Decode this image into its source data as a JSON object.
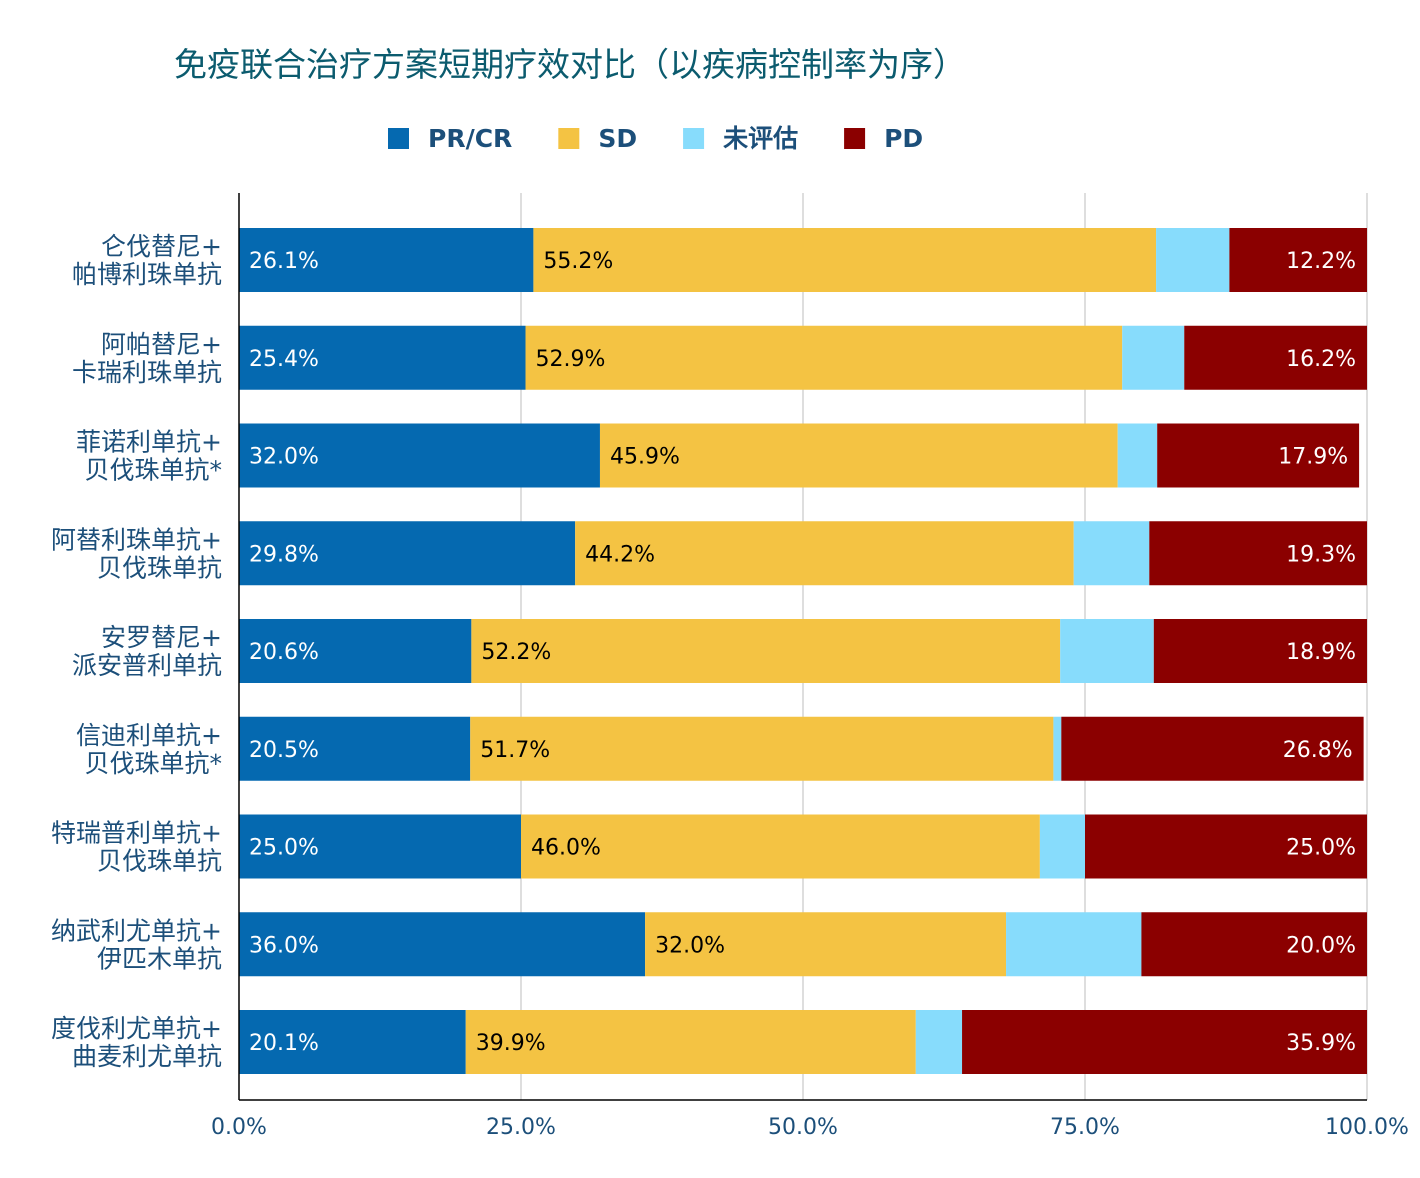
{
  "chart_data": {
    "type": "bar",
    "orientation": "horizontal",
    "stacked": true,
    "title": "免疫联合治疗方案短期疗效对比（以疾病控制率为序）",
    "xlabel": "",
    "ylabel": "",
    "xlim": [
      0,
      100
    ],
    "x_ticks": [
      "0.0%",
      "25.0%",
      "50.0%",
      "75.0%",
      "100.0%"
    ],
    "grid": "vertical",
    "legend_position": "top",
    "categories": [
      [
        "仑伐替尼+",
        "帕博利珠单抗"
      ],
      [
        "阿帕替尼+",
        "卡瑞利珠单抗"
      ],
      [
        "菲诺利单抗+",
        "贝伐珠单抗*"
      ],
      [
        "阿替利珠单抗+",
        "贝伐珠单抗"
      ],
      [
        "安罗替尼+",
        "派安普利单抗"
      ],
      [
        "信迪利单抗+",
        "贝伐珠单抗*"
      ],
      [
        "特瑞普利单抗+",
        "贝伐珠单抗"
      ],
      [
        "纳武利尤单抗+",
        "伊匹木单抗"
      ],
      [
        "度伐利尤单抗+",
        "曲麦利尤单抗"
      ]
    ],
    "series": [
      {
        "name": "PR/CR",
        "color": "#0569b0",
        "label_color": "#ffffff",
        "label_align": "left",
        "values": [
          26.1,
          25.4,
          32.0,
          29.8,
          20.6,
          20.5,
          25.0,
          36.0,
          20.1
        ],
        "labels": [
          "26.1%",
          "25.4%",
          "32.0%",
          "29.8%",
          "20.6%",
          "20.5%",
          "25.0%",
          "36.0%",
          "20.1%"
        ]
      },
      {
        "name": "SD",
        "color": "#f4c343",
        "label_color": "#000000",
        "label_align": "left",
        "values": [
          55.2,
          52.9,
          45.9,
          44.2,
          52.2,
          51.7,
          46.0,
          32.0,
          39.9
        ],
        "labels": [
          "55.2%",
          "52.9%",
          "45.9%",
          "44.2%",
          "52.2%",
          "51.7%",
          "46.0%",
          "32.0%",
          "39.9%"
        ]
      },
      {
        "name": "未评估",
        "color": "#87dcfc",
        "label_color": "",
        "label_align": "none",
        "values": [
          6.5,
          5.5,
          3.5,
          6.7,
          8.3,
          0.7,
          4.0,
          12.0,
          4.1
        ],
        "labels": []
      },
      {
        "name": "PD",
        "color": "#8b0000",
        "label_color": "#ffffff",
        "label_align": "right",
        "values": [
          12.2,
          16.2,
          17.9,
          19.3,
          18.9,
          26.8,
          25.0,
          20.0,
          35.9
        ],
        "labels": [
          "12.2%",
          "16.2%",
          "17.9%",
          "19.3%",
          "18.9%",
          "26.8%",
          "25.0%",
          "20.0%",
          "35.9%"
        ]
      }
    ],
    "colors": {
      "title": "#0b5b6e",
      "axis_text": "#1c4f7a",
      "legend_text": "#1c4f7a",
      "grid": "#c8c8c8",
      "axis": "#000000"
    }
  }
}
